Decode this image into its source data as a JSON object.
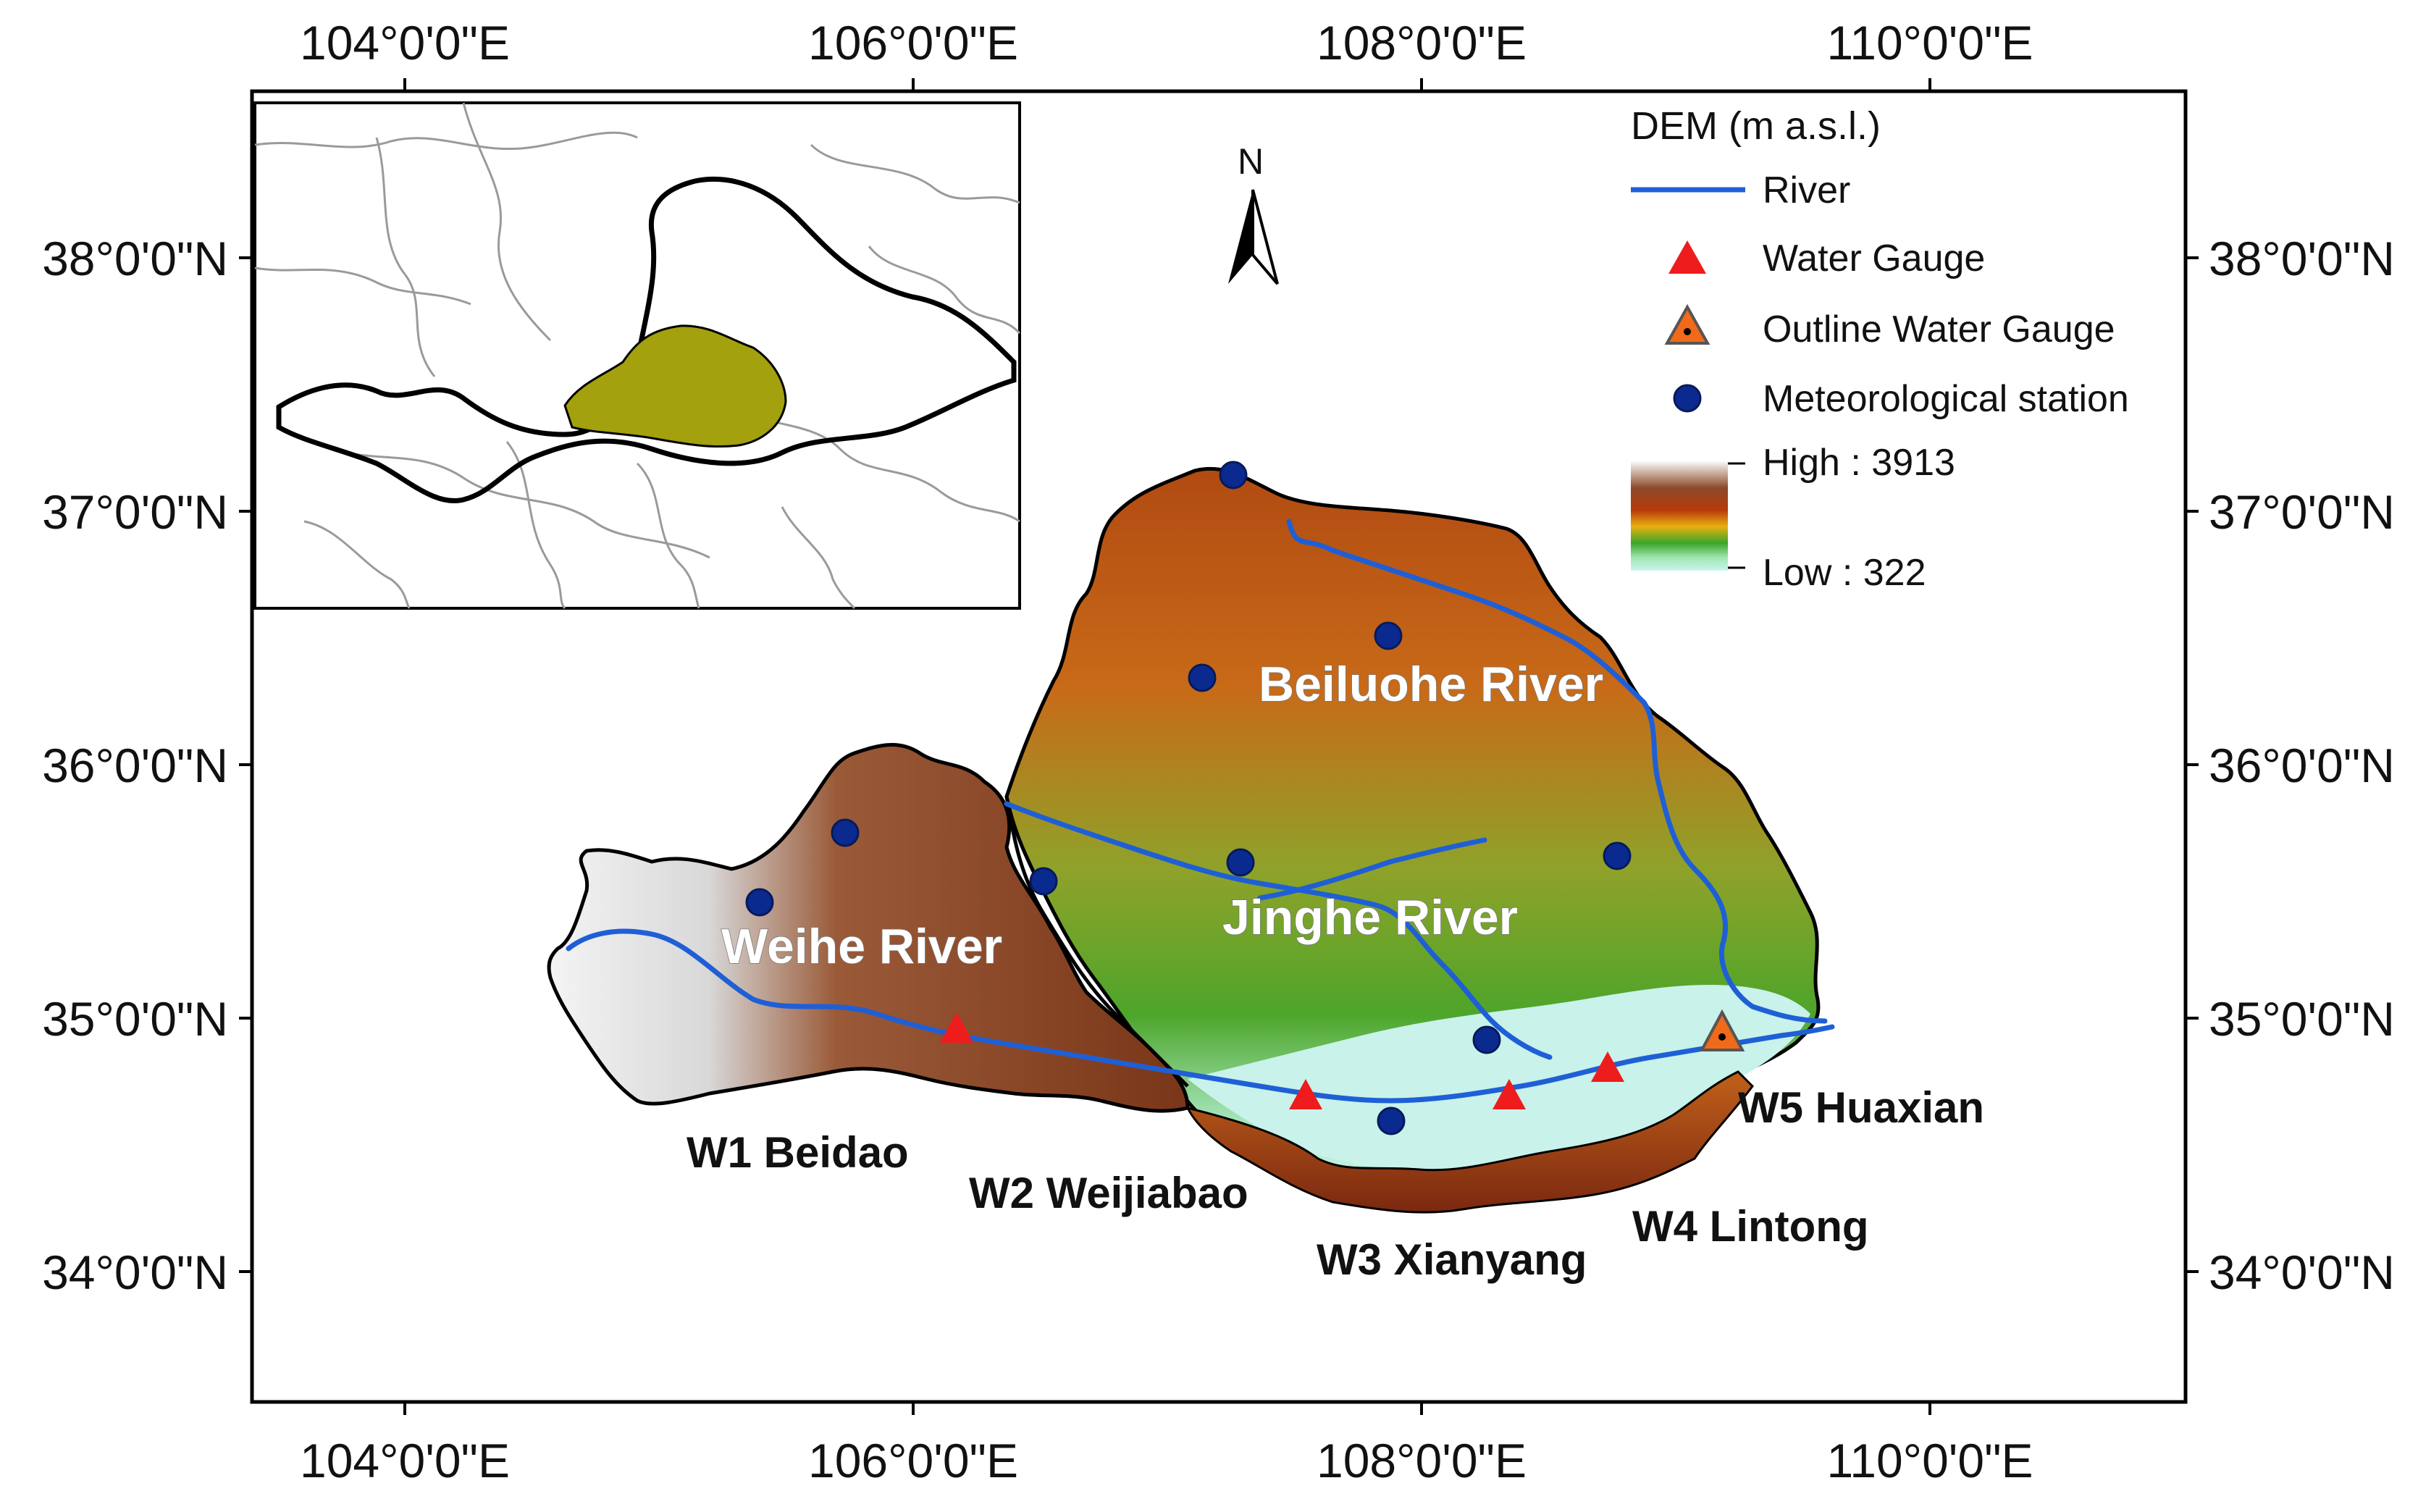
{
  "axes": {
    "top_lon_labels": [
      "104°0'0\"E",
      "106°0'0\"E",
      "108°0'0\"E",
      "110°0'0\"E"
    ],
    "bottom_lon_labels": [
      "104°0'0\"E",
      "106°0'0\"E",
      "108°0'0\"E",
      "110°0'0\"E"
    ],
    "left_lat_labels": [
      "38°0'0\"N",
      "37°0'0\"N",
      "36°0'0\"N",
      "35°0'0\"N",
      "34°0'0\"N"
    ],
    "right_lat_labels": [
      "38°0'0\"N",
      "37°0'0\"N",
      "36°0'0\"N",
      "35°0'0\"N",
      "34°0'0\"N"
    ]
  },
  "north_arrow": {
    "letter": "N"
  },
  "legend": {
    "title": "DEM (m a.s.l.)",
    "items": [
      {
        "label": "River",
        "symbol": "line",
        "color": "#1f5fd6"
      },
      {
        "label": "Water Gauge",
        "symbol": "triangle",
        "color": "#ee1c1c"
      },
      {
        "label": "Outline Water Gauge",
        "symbol": "triangle-outlined",
        "color": "#f06a1a"
      },
      {
        "label": "Meteorological station",
        "symbol": "circle",
        "color": "#0b2a8f"
      }
    ],
    "ramp_high": "High : 3913",
    "ramp_low": "Low : 322"
  },
  "rivers": [
    {
      "label": "Beiluohe River"
    },
    {
      "label": "Jinghe River"
    },
    {
      "label": "Weihe River"
    }
  ],
  "gauges": [
    {
      "label": "W1 Beidao"
    },
    {
      "label": "W2 Weijiabao"
    },
    {
      "label": "W3 Xianyang"
    },
    {
      "label": "W4 Lintong"
    },
    {
      "label": "W5 Huaxian"
    }
  ],
  "colors": {
    "river": "#1f5fd6",
    "gauge": "#ee1c1c",
    "outline_gauge": "#f06a1a",
    "station": "#0b2a8f",
    "inset_basin": "#a3a10d",
    "frame": "#000000"
  }
}
